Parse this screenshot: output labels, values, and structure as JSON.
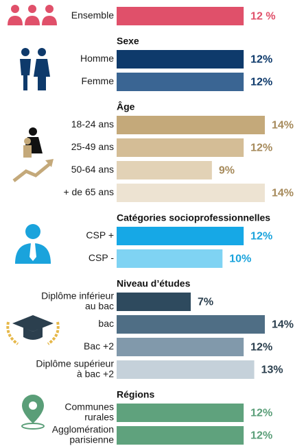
{
  "chart_data": {
    "type": "grouped-hbar",
    "groups": [
      {
        "label_color": "#e0506a",
        "categories": [
          "Ensemble"
        ],
        "values": [
          12
        ],
        "value_labels": [
          "12 %"
        ],
        "colors": [
          "#e0506a"
        ]
      },
      {
        "title": "Sexe",
        "label_color": "#0e3a6b",
        "categories": [
          "Homme",
          "Femme"
        ],
        "values": [
          12,
          12
        ],
        "value_labels": [
          "12%",
          "12%"
        ],
        "colors": [
          "#0e3a6b",
          "#3a6593"
        ]
      },
      {
        "title": "Âge",
        "label_color": "#a68a5b",
        "categories": [
          "18-24 ans",
          "25-49 ans",
          "50-64 ans",
          "+ de 65 ans"
        ],
        "values": [
          14,
          12,
          9,
          14
        ],
        "value_labels": [
          "14%",
          "12%",
          "9%",
          "14%"
        ],
        "colors": [
          "#c4a97a",
          "#d4bd96",
          "#e2d2b6",
          "#ede3d2"
        ]
      },
      {
        "title": "Catégories socioprofessionnelles",
        "label_color": "#1aa3dc",
        "categories": [
          "CSP +",
          "CSP -"
        ],
        "values": [
          12,
          10
        ],
        "value_labels": [
          "12%",
          "10%"
        ],
        "colors": [
          "#16a8e6",
          "#7fd3f3"
        ]
      },
      {
        "title": "Niveau d’études",
        "label_color": "#2b3f4e",
        "categories": [
          [
            "Diplôme inférieur",
            "au bac"
          ],
          "bac",
          "Bac +2",
          [
            "Diplôme supérieur",
            "à bac +2"
          ]
        ],
        "values": [
          7,
          14,
          12,
          13
        ],
        "value_labels": [
          "7%",
          "14%",
          "12%",
          "13%"
        ],
        "colors": [
          "#2e4a5e",
          "#4f6e85",
          "#8199ab",
          "#c5d1da"
        ]
      },
      {
        "title": "Régions",
        "label_color": "#5a9e78",
        "categories": [
          [
            "Communes",
            "rurales"
          ],
          [
            "Agglomération",
            "parisienne"
          ]
        ],
        "values": [
          12,
          12
        ],
        "value_labels": [
          "12%",
          "12%"
        ],
        "colors": [
          "#5fa27d",
          "#5fa27d"
        ]
      }
    ]
  }
}
